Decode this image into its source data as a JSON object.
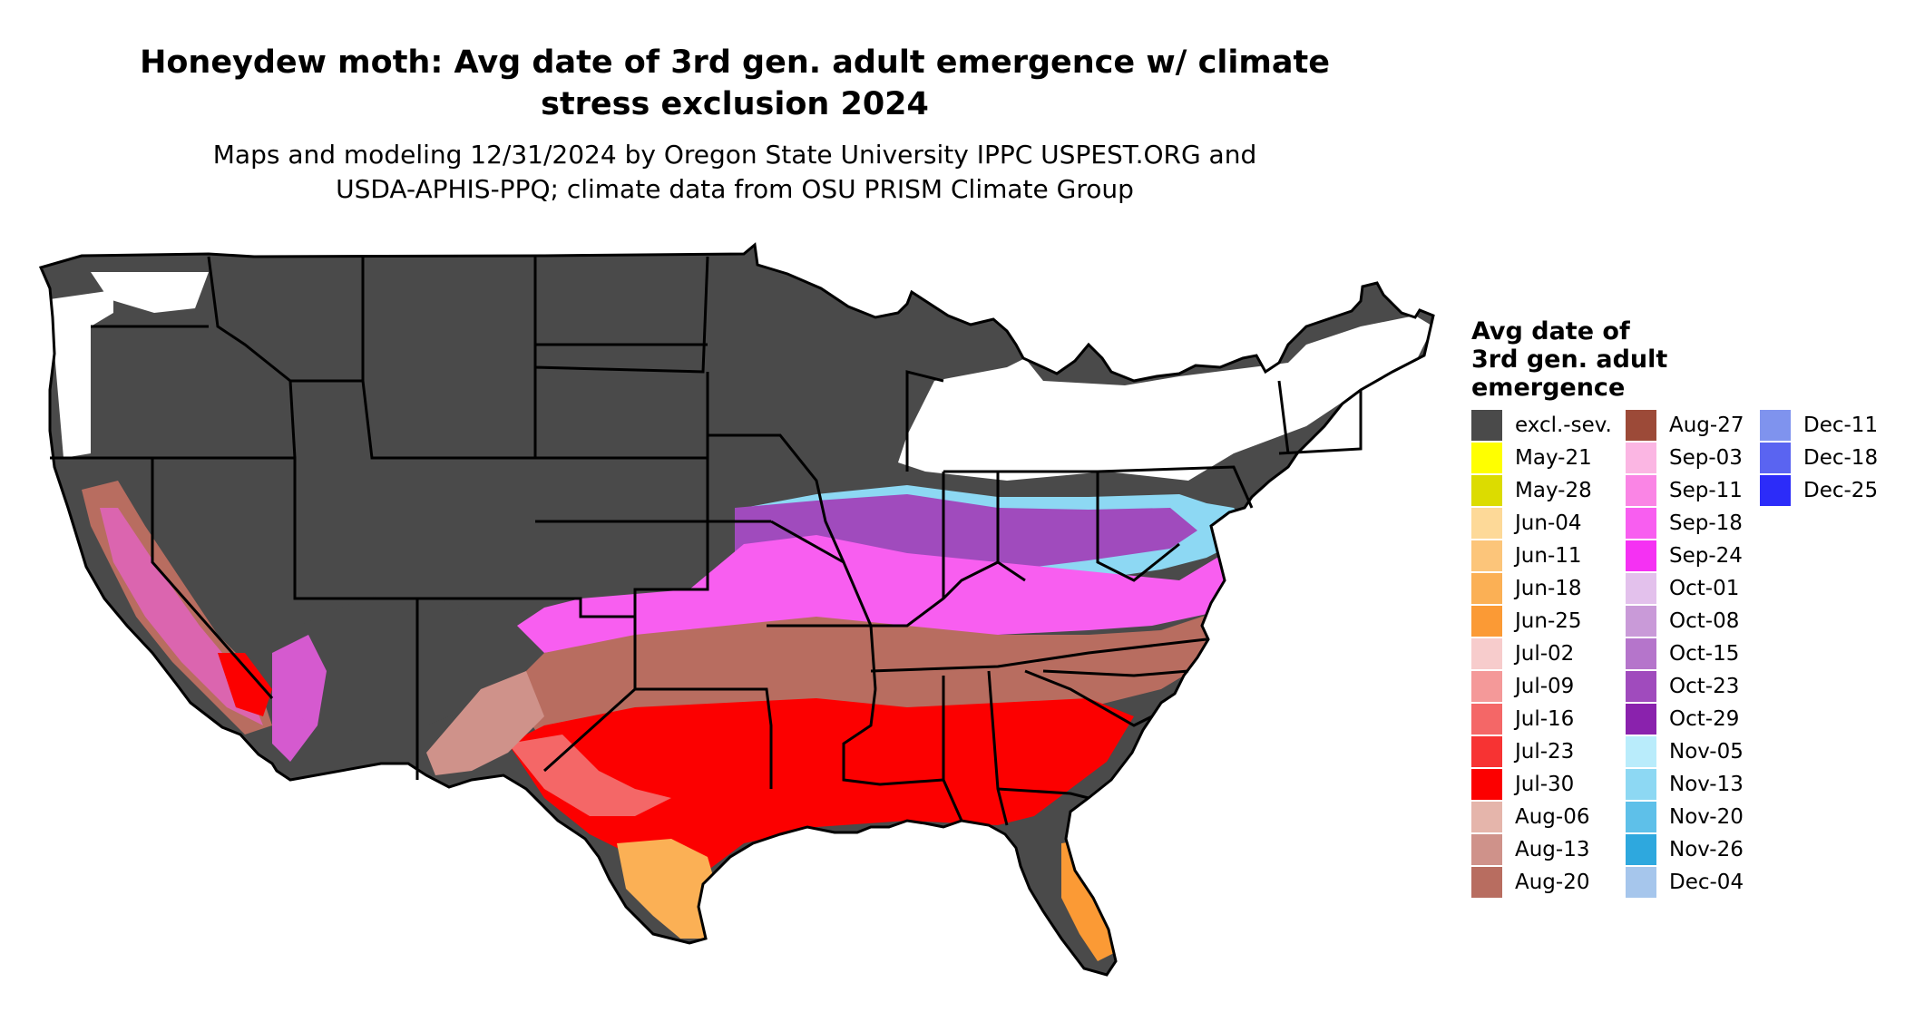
{
  "title_line1": "Honeydew moth: Avg date of 3rd gen. adult emergence w/ climate",
  "title_line2": "stress exclusion 2024",
  "subtitle_line1": "Maps and modeling 12/31/2024 by Oregon State University IPPC USPEST.ORG and",
  "subtitle_line2": "USDA-APHIS-PPQ; climate data from OSU PRISM Climate Group",
  "legend": {
    "title_line1": "Avg date of",
    "title_line2": "3rd gen. adult",
    "title_line3": "emergence",
    "columns": [
      [
        {
          "label": "excl.-sev.",
          "color": "#4a4a4a"
        },
        {
          "label": "May-21",
          "color": "#ffff00"
        },
        {
          "label": "May-28",
          "color": "#dcdc00"
        },
        {
          "label": "Jun-04",
          "color": "#fdd998"
        },
        {
          "label": "Jun-11",
          "color": "#fcc57a"
        },
        {
          "label": "Jun-18",
          "color": "#fbb055"
        },
        {
          "label": "Jun-25",
          "color": "#fb9a35"
        },
        {
          "label": "Jul-02",
          "color": "#f7cccc"
        },
        {
          "label": "Jul-09",
          "color": "#f49999"
        },
        {
          "label": "Jul-16",
          "color": "#f46767"
        },
        {
          "label": "Jul-23",
          "color": "#f73333"
        },
        {
          "label": "Jul-30",
          "color": "#fc0000"
        },
        {
          "label": "Aug-06",
          "color": "#e5b5ab"
        },
        {
          "label": "Aug-13",
          "color": "#cf928a"
        },
        {
          "label": "Aug-20",
          "color": "#b86d60"
        }
      ],
      [
        {
          "label": "Aug-27",
          "color": "#9c4a38"
        },
        {
          "label": "Sep-03",
          "color": "#fbb6e3"
        },
        {
          "label": "Sep-11",
          "color": "#fa85e5"
        },
        {
          "label": "Sep-18",
          "color": "#f85ef0"
        },
        {
          "label": "Sep-24",
          "color": "#f531f3"
        },
        {
          "label": "Oct-01",
          "color": "#e3c1ec"
        },
        {
          "label": "Oct-08",
          "color": "#c99ad8"
        },
        {
          "label": "Oct-15",
          "color": "#b575cb"
        },
        {
          "label": "Oct-23",
          "color": "#a04bbd"
        },
        {
          "label": "Oct-29",
          "color": "#8a22ad"
        },
        {
          "label": "Nov-05",
          "color": "#b9ecfb"
        },
        {
          "label": "Nov-13",
          "color": "#8dd8f3"
        },
        {
          "label": "Nov-20",
          "color": "#5ec0e9"
        },
        {
          "label": "Nov-26",
          "color": "#2ea8de"
        },
        {
          "label": "Dec-04",
          "color": "#a6c6ec"
        }
      ],
      [
        {
          "label": "Dec-11",
          "color": "#7f93ee"
        },
        {
          "label": "Dec-18",
          "color": "#5a64f1"
        },
        {
          "label": "Dec-25",
          "color": "#2c2cf9"
        }
      ]
    ]
  }
}
